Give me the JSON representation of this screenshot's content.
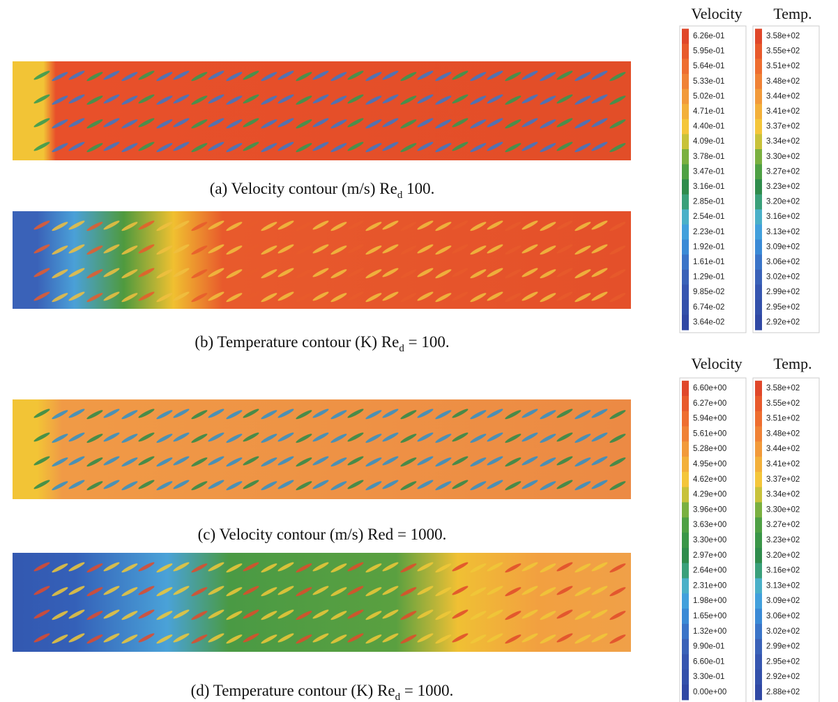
{
  "panels": [
    {
      "caption": "(a) Velocity contour (m/s) Re",
      "subscript": "d",
      "suffix": " 100."
    },
    {
      "caption": "(b) Temperature contour (K) Re",
      "subscript": "d",
      "suffix": " = 100."
    },
    {
      "caption": "(c) Velocity contour (m/s) Red = 1000."
    },
    {
      "caption": "(d) Temperature contour (K) Re",
      "subscript": "d",
      "suffix": " = 1000."
    }
  ],
  "legends": [
    {
      "velocity_title": "Velocity",
      "temp_title": "Temp.",
      "velocity_labels": [
        "6.26e-01",
        "5.95e-01",
        "5.64e-01",
        "5.33e-01",
        "5.02e-01",
        "4.71e-01",
        "4.40e-01",
        "4.09e-01",
        "3.78e-01",
        "3.47e-01",
        "3.16e-01",
        "2.85e-01",
        "2.54e-01",
        "2.23e-01",
        "1.92e-01",
        "1.61e-01",
        "1.29e-01",
        "9.85e-02",
        "6.74e-02",
        "3.64e-02"
      ],
      "temp_labels": [
        "3.58e+02",
        "3.55e+02",
        "3.51e+02",
        "3.48e+02",
        "3.44e+02",
        "3.41e+02",
        "3.37e+02",
        "3.34e+02",
        "3.30e+02",
        "3.27e+02",
        "3.23e+02",
        "3.20e+02",
        "3.16e+02",
        "3.13e+02",
        "3.09e+02",
        "3.06e+02",
        "3.02e+02",
        "2.99e+02",
        "2.95e+02",
        "2.92e+02"
      ]
    },
    {
      "velocity_title": "Velocity",
      "temp_title": "Temp.",
      "velocity_labels": [
        "6.60e+00",
        "6.27e+00",
        "5.94e+00",
        "5.61e+00",
        "5.28e+00",
        "4.95e+00",
        "4.62e+00",
        "4.29e+00",
        "3.96e+00",
        "3.63e+00",
        "3.30e+00",
        "2.97e+00",
        "2.64e+00",
        "2.31e+00",
        "1.98e+00",
        "1.65e+00",
        "1.32e+00",
        "9.90e-01",
        "6.60e-01",
        "3.30e-01",
        "0.00e+00"
      ],
      "temp_labels": [
        "3.58e+02",
        "3.55e+02",
        "3.51e+02",
        "3.48e+02",
        "3.44e+02",
        "3.41e+02",
        "3.37e+02",
        "3.34e+02",
        "3.30e+02",
        "3.27e+02",
        "3.23e+02",
        "3.20e+02",
        "3.16e+02",
        "3.13e+02",
        "3.09e+02",
        "3.06e+02",
        "3.02e+02",
        "2.99e+02",
        "2.95e+02",
        "2.92e+02",
        "2.88e+02"
      ]
    }
  ]
}
